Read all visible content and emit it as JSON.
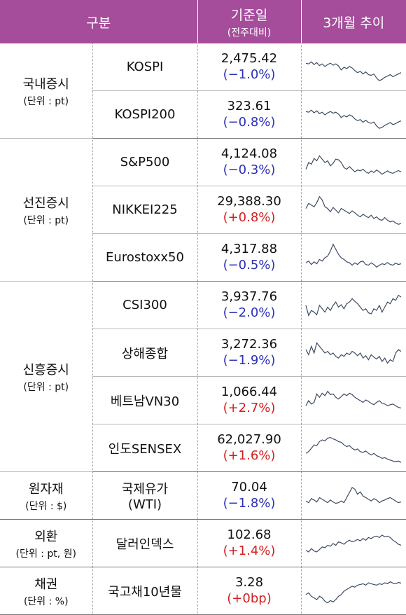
{
  "header": {
    "category": "구분",
    "base_date": "기준일",
    "base_date_sub": "(전주대비)",
    "trend": "3개월 추이"
  },
  "groups": [
    {
      "name": "국내증시",
      "unit": "(단위 : pt)",
      "rows": [
        {
          "name": "KOSPI",
          "value": "2,475.42",
          "change": "(−1.0%)",
          "dir": "neg",
          "trend": [
            0.62,
            0.6,
            0.66,
            0.58,
            0.64,
            0.55,
            0.6,
            0.52,
            0.58,
            0.62,
            0.56,
            0.6,
            0.54,
            0.42,
            0.5,
            0.46,
            0.52,
            0.48,
            0.4,
            0.34,
            0.38,
            0.3,
            0.36,
            0.28,
            0.26,
            0.3,
            0.18,
            0.1,
            0.14,
            0.2,
            0.24,
            0.28,
            0.22,
            0.26,
            0.3,
            0.34
          ]
        },
        {
          "name": "KOSPI200",
          "value": "323.61",
          "change": "(−0.8%)",
          "dir": "neg",
          "trend": [
            0.6,
            0.58,
            0.64,
            0.56,
            0.62,
            0.54,
            0.58,
            0.5,
            0.56,
            0.6,
            0.55,
            0.58,
            0.52,
            0.42,
            0.48,
            0.44,
            0.5,
            0.46,
            0.38,
            0.33,
            0.36,
            0.28,
            0.34,
            0.27,
            0.25,
            0.29,
            0.17,
            0.1,
            0.13,
            0.19,
            0.23,
            0.27,
            0.21,
            0.24,
            0.29,
            0.32
          ]
        }
      ]
    },
    {
      "name": "선진증시",
      "unit": "(단위 : pt)",
      "rows": [
        {
          "name": "S&P500",
          "value": "4,124.08",
          "change": "(−0.3%)",
          "dir": "neg",
          "trend": [
            0.3,
            0.5,
            0.45,
            0.62,
            0.55,
            0.7,
            0.6,
            0.5,
            0.55,
            0.4,
            0.48,
            0.6,
            0.58,
            0.5,
            0.35,
            0.3,
            0.38,
            0.3,
            0.22,
            0.28,
            0.25,
            0.3,
            0.22,
            0.18,
            0.25,
            0.2,
            0.28,
            0.22,
            0.15,
            0.2,
            0.25,
            0.2,
            0.18,
            0.22,
            0.26,
            0.22
          ]
        },
        {
          "name": "NIKKEI225",
          "value": "29,388.30",
          "change": "(+0.8%)",
          "dir": "pos",
          "trend": [
            0.55,
            0.7,
            0.65,
            0.6,
            0.72,
            0.9,
            0.8,
            0.6,
            0.55,
            0.45,
            0.58,
            0.5,
            0.42,
            0.55,
            0.5,
            0.45,
            0.4,
            0.48,
            0.42,
            0.35,
            0.3,
            0.38,
            0.32,
            0.28,
            0.35,
            0.25,
            0.3,
            0.22,
            0.2,
            0.28,
            0.2,
            0.15,
            0.18,
            0.12,
            0.08,
            0.1
          ]
        },
        {
          "name": "Eurostoxx50",
          "value": "4,317.88",
          "change": "(−0.5%)",
          "dir": "neg",
          "trend": [
            0.35,
            0.4,
            0.3,
            0.38,
            0.32,
            0.45,
            0.4,
            0.5,
            0.55,
            0.7,
            0.9,
            0.75,
            0.6,
            0.5,
            0.45,
            0.38,
            0.35,
            0.28,
            0.35,
            0.3,
            0.38,
            0.4,
            0.3,
            0.28,
            0.35,
            0.3,
            0.22,
            0.28,
            0.32,
            0.3,
            0.36,
            0.3,
            0.28,
            0.34,
            0.3,
            0.32
          ]
        }
      ]
    },
    {
      "name": "신흥증시",
      "unit": "(단위 : pt)",
      "rows": [
        {
          "name": "CSI300",
          "value": "3,937.76",
          "change": "(−2.0%)",
          "dir": "neg",
          "trend": [
            0.5,
            0.2,
            0.35,
            0.3,
            0.22,
            0.5,
            0.4,
            0.3,
            0.45,
            0.35,
            0.5,
            0.6,
            0.45,
            0.52,
            0.4,
            0.55,
            0.6,
            0.7,
            0.62,
            0.55,
            0.45,
            0.35,
            0.4,
            0.28,
            0.25,
            0.4,
            0.35,
            0.5,
            0.3,
            0.45,
            0.6,
            0.55,
            0.7,
            0.65,
            0.8,
            0.75
          ]
        },
        {
          "name": "상해종합",
          "value": "3,272.36",
          "change": "(−1.9%)",
          "dir": "neg",
          "trend": [
            0.6,
            0.45,
            0.7,
            0.5,
            0.8,
            0.7,
            0.6,
            0.5,
            0.55,
            0.45,
            0.5,
            0.4,
            0.35,
            0.45,
            0.4,
            0.5,
            0.45,
            0.55,
            0.5,
            0.42,
            0.5,
            0.35,
            0.42,
            0.3,
            0.45,
            0.38,
            0.32,
            0.4,
            0.25,
            0.35,
            0.2,
            0.3,
            0.25,
            0.5,
            0.6,
            0.55
          ]
        },
        {
          "name": "베트남VN30",
          "value": "1,066.44",
          "change": "(+2.7%)",
          "dir": "pos",
          "trend": [
            0.35,
            0.5,
            0.4,
            0.45,
            0.7,
            0.6,
            0.72,
            0.65,
            0.78,
            0.68,
            0.7,
            0.6,
            0.55,
            0.62,
            0.7,
            0.65,
            0.72,
            0.68,
            0.6,
            0.55,
            0.5,
            0.45,
            0.52,
            0.48,
            0.42,
            0.38,
            0.45,
            0.5,
            0.42,
            0.4,
            0.35,
            0.38,
            0.4,
            0.35,
            0.3,
            0.28
          ]
        },
        {
          "name": "인도SENSEX",
          "value": "62,027.90",
          "change": "(+1.6%)",
          "dir": "pos",
          "trend": [
            0.35,
            0.4,
            0.5,
            0.6,
            0.58,
            0.7,
            0.75,
            0.72,
            0.8,
            0.82,
            0.78,
            0.75,
            0.7,
            0.68,
            0.6,
            0.55,
            0.58,
            0.5,
            0.45,
            0.48,
            0.4,
            0.38,
            0.42,
            0.35,
            0.3,
            0.35,
            0.28,
            0.25,
            0.2,
            0.22,
            0.18,
            0.15,
            0.12,
            0.1,
            0.12,
            0.08
          ]
        }
      ]
    },
    {
      "name": "원자재",
      "unit": "(단위 : $)",
      "rows": [
        {
          "name": "국제유가",
          "name2": "(WTI)",
          "value": "70.04",
          "change": "(−1.8%)",
          "dir": "neg",
          "trend": [
            0.35,
            0.3,
            0.42,
            0.38,
            0.32,
            0.45,
            0.4,
            0.35,
            0.3,
            0.38,
            0.32,
            0.28,
            0.3,
            0.35,
            0.3,
            0.45,
            0.6,
            0.75,
            0.7,
            0.55,
            0.62,
            0.5,
            0.45,
            0.4,
            0.35,
            0.42,
            0.38,
            0.3,
            0.35,
            0.38,
            0.42,
            0.45,
            0.4,
            0.35,
            0.3,
            0.32
          ]
        }
      ]
    },
    {
      "name": "외환",
      "unit": "(단위 : pt, 원)",
      "rows": [
        {
          "name": "달러인덱스",
          "value": "102.68",
          "change": "(+1.4%)",
          "dir": "pos",
          "trend": [
            0.3,
            0.25,
            0.35,
            0.28,
            0.25,
            0.32,
            0.4,
            0.38,
            0.45,
            0.42,
            0.5,
            0.45,
            0.55,
            0.52,
            0.48,
            0.55,
            0.6,
            0.55,
            0.58,
            0.62,
            0.58,
            0.65,
            0.6,
            0.68,
            0.65,
            0.7,
            0.72,
            0.68,
            0.75,
            0.7,
            0.72,
            0.68,
            0.6,
            0.55,
            0.48,
            0.45
          ]
        }
      ]
    },
    {
      "name": "채권",
      "unit": "(단위 : %)",
      "rows": [
        {
          "name": "국고채10년물",
          "value": "3.28",
          "change": "(+0bp)",
          "dir": "pos",
          "trend": [
            0.4,
            0.45,
            0.35,
            0.3,
            0.25,
            0.35,
            0.3,
            0.2,
            0.15,
            0.22,
            0.18,
            0.25,
            0.35,
            0.4,
            0.5,
            0.55,
            0.6,
            0.65,
            0.62,
            0.68,
            0.7,
            0.72,
            0.68,
            0.75,
            0.72,
            0.7,
            0.68,
            0.72,
            0.7,
            0.75,
            0.72,
            0.78,
            0.74,
            0.72,
            0.76,
            0.74
          ]
        }
      ]
    }
  ]
}
